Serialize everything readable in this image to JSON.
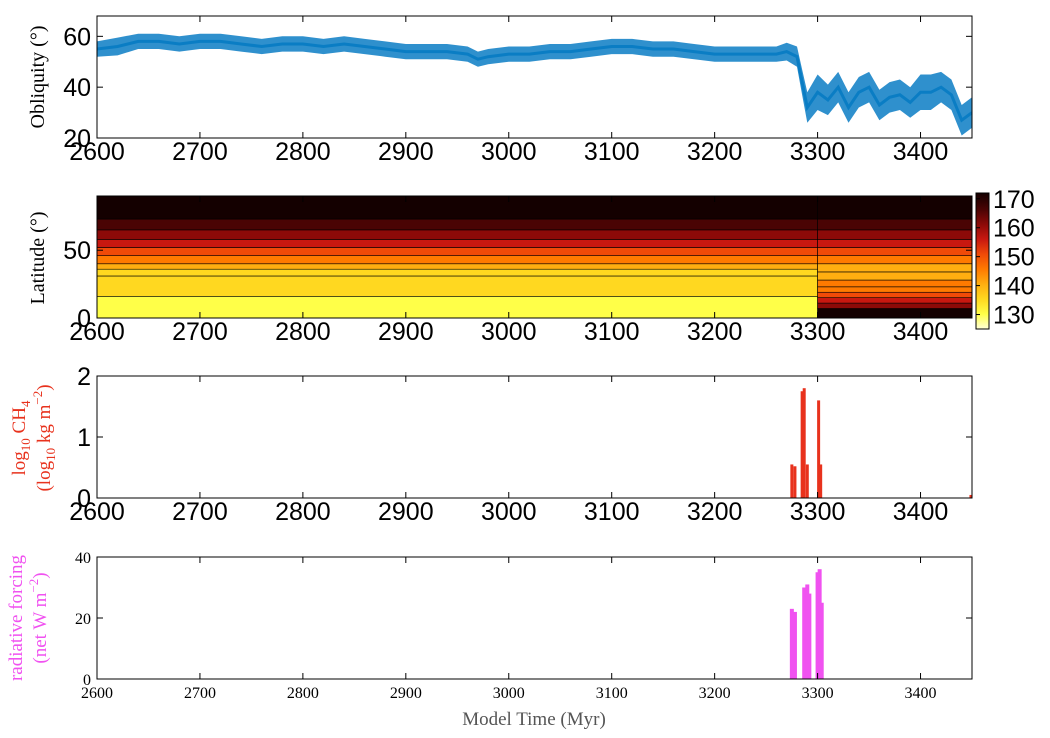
{
  "colors": {
    "obliquity": "#0a7dc4",
    "methane": "#e8321d",
    "forcing": "#f052f0",
    "axis": "#000000",
    "colormap": [
      "#ffffd8",
      "#ffff48",
      "#ffd820",
      "#ffae10",
      "#ff7a00",
      "#f04a08",
      "#c81810",
      "#8c0a08",
      "#4a0404",
      "#140000"
    ]
  },
  "xaxis": {
    "ticks": [
      "2600",
      "2700",
      "2800",
      "2900",
      "3000",
      "3100",
      "3200",
      "3300",
      "3400"
    ],
    "label": "Model Time (Myr)",
    "range": [
      2600,
      3450
    ]
  },
  "panel1": {
    "ylabel": "Obliquity (°)",
    "yticks": [
      "20",
      "40",
      "60"
    ]
  },
  "panel2": {
    "ylabel": "Latitude (°)",
    "yticks": [
      "0",
      "50"
    ],
    "colorbar_ticks": [
      "130",
      "140",
      "150",
      "160",
      "170"
    ]
  },
  "panel3": {
    "ylabel_line1_main": "log",
    "ylabel_line1_sub": "10",
    "ylabel_line1_rest": " CH",
    "ylabel_line1_sub2": "4",
    "ylabel_line2_a": "(log",
    "ylabel_line2_sub": "10",
    "ylabel_line2_b": " kg m",
    "ylabel_line2_sup": "−2",
    "ylabel_line2_c": ")",
    "yticks": [
      "0",
      "1",
      "2"
    ]
  },
  "panel4": {
    "ylabel_line1": "radiative forcing",
    "ylabel_line2_a": "(net W m",
    "ylabel_line2_sup": "−2",
    "ylabel_line2_b": ")",
    "yticks": [
      "0",
      "20",
      "40"
    ]
  },
  "chart_data": [
    {
      "type": "line",
      "ylim": [
        20,
        68
      ],
      "xlim": [
        2600,
        3450
      ],
      "series": [
        {
          "x": [
            2600,
            2620,
            2640,
            2660,
            2680,
            2700,
            2720,
            2740,
            2760,
            2780,
            2800,
            2820,
            2840,
            2860,
            2880,
            2900,
            2920,
            2940,
            2960,
            2970,
            2980,
            3000,
            3020,
            3040,
            3060,
            3080,
            3100,
            3120,
            3140,
            3160,
            3180,
            3200,
            3220,
            3240,
            3260,
            3270,
            3280,
            3285,
            3290,
            3300,
            3310,
            3320,
            3330,
            3340,
            3350,
            3360,
            3370,
            3380,
            3390,
            3400,
            3410,
            3420,
            3430,
            3440,
            3450
          ],
          "y": [
            55,
            56,
            58,
            58,
            57,
            58,
            58,
            57,
            56,
            57,
            57,
            56,
            57,
            56,
            55,
            54,
            54,
            54,
            53,
            51,
            52,
            53,
            53,
            54,
            54,
            55,
            56,
            56,
            55,
            55,
            54,
            53,
            53,
            53,
            53,
            54,
            52,
            42,
            32,
            38,
            35,
            40,
            32,
            38,
            40,
            33,
            36,
            37,
            34,
            38,
            38,
            40,
            37,
            27,
            30
          ],
          "spread": [
            6,
            7,
            6,
            6,
            6,
            6,
            6,
            6,
            6,
            6,
            6,
            6,
            6,
            6,
            6,
            6,
            6,
            6,
            6,
            6,
            6,
            6,
            6,
            6,
            6,
            6,
            6,
            6,
            6,
            6,
            6,
            6,
            6,
            6,
            6,
            7,
            8,
            10,
            12,
            14,
            12,
            12,
            12,
            12,
            12,
            12,
            12,
            12,
            12,
            14,
            14,
            12,
            12,
            12,
            12
          ]
        }
      ]
    },
    {
      "type": "heatmap",
      "ylim": [
        0,
        90
      ],
      "clim": [
        125,
        172
      ],
      "bands_before_3300": [
        {
          "lat": [
            0,
            16
          ],
          "value": 130
        },
        {
          "lat": [
            16,
            31
          ],
          "value": 133
        },
        {
          "lat": [
            31,
            36
          ],
          "value": 136
        },
        {
          "lat": [
            36,
            40
          ],
          "value": 140
        },
        {
          "lat": [
            40,
            46
          ],
          "value": 145
        },
        {
          "lat": [
            46,
            52
          ],
          "value": 150
        },
        {
          "lat": [
            52,
            58
          ],
          "value": 155
        },
        {
          "lat": [
            58,
            65
          ],
          "value": 160
        },
        {
          "lat": [
            65,
            73
          ],
          "value": 165
        },
        {
          "lat": [
            73,
            90
          ],
          "value": 171
        }
      ],
      "bands_after_3300": [
        {
          "lat": [
            0,
            7
          ],
          "value": 171
        },
        {
          "lat": [
            7,
            11
          ],
          "value": 163
        },
        {
          "lat": [
            11,
            15
          ],
          "value": 158
        },
        {
          "lat": [
            15,
            19
          ],
          "value": 153
        },
        {
          "lat": [
            19,
            23
          ],
          "value": 148
        },
        {
          "lat": [
            23,
            28
          ],
          "value": 145
        },
        {
          "lat": [
            28,
            34
          ],
          "value": 140
        },
        {
          "lat": [
            34,
            40
          ],
          "value": 140
        },
        {
          "lat": [
            40,
            46
          ],
          "value": 145
        },
        {
          "lat": [
            46,
            52
          ],
          "value": 150
        },
        {
          "lat": [
            52,
            58
          ],
          "value": 155
        },
        {
          "lat": [
            58,
            65
          ],
          "value": 160
        },
        {
          "lat": [
            65,
            73
          ],
          "value": 165
        },
        {
          "lat": [
            73,
            90
          ],
          "value": 171
        }
      ]
    },
    {
      "type": "bar",
      "ylim": [
        0,
        2
      ],
      "x": [
        3275,
        3278,
        3285,
        3287,
        3290,
        3301,
        3303,
        3449
      ],
      "values": [
        0.55,
        0.52,
        1.75,
        1.8,
        0.55,
        1.6,
        0.55,
        0.05
      ]
    },
    {
      "type": "bar",
      "ylim": [
        0,
        40
      ],
      "x": [
        3275,
        3278,
        3287,
        3290,
        3292,
        3300,
        3302,
        3304
      ],
      "values": [
        23,
        22,
        30,
        31,
        28,
        35,
        36,
        25
      ]
    }
  ]
}
